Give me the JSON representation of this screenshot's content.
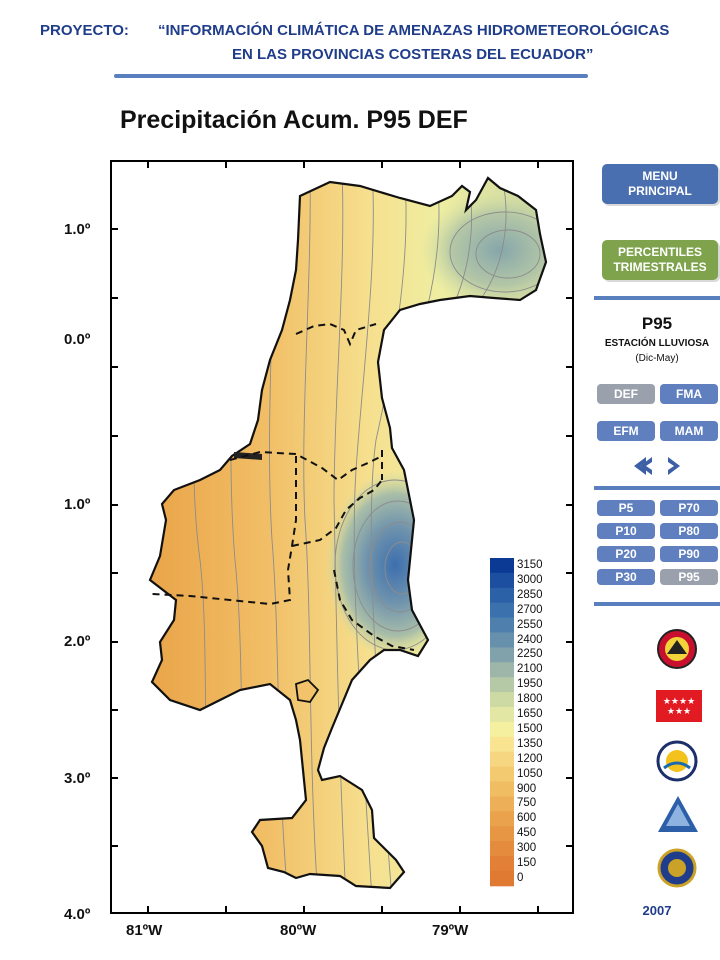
{
  "header": {
    "line1_prefix": "PROYECTO:",
    "line1_title": "“INFORMACIÓN CLIMÁTICA DE AMENAZAS HIDROMETEOROLÓGICAS",
    "line2_title": "EN LAS PROVINCIAS COSTERAS DEL ECUADOR”"
  },
  "map": {
    "title": "Precipitación Acum. P95 DEF",
    "lat_labels": [
      "1.0º",
      "0.0º",
      "1.0º",
      "2.0º",
      "3.0º",
      "4.0º"
    ],
    "lon_labels": [
      "81ºW",
      "80ºW",
      "79ºW"
    ]
  },
  "legend": {
    "values": [
      "3150",
      "3000",
      "2850",
      "2700",
      "2550",
      "2400",
      "2250",
      "2100",
      "1950",
      "1800",
      "1650",
      "1500",
      "1350",
      "1200",
      "1050",
      "900",
      "750",
      "600",
      "450",
      "300",
      "150",
      "0"
    ],
    "colors": [
      "#0b3a95",
      "#1c4f9f",
      "#2b61a7",
      "#3b72ad",
      "#4f80ad",
      "#6790ad",
      "#81a2ab",
      "#9db6a9",
      "#b6c9a6",
      "#cddaa3",
      "#e2e8a3",
      "#f4f0a0",
      "#f8e491",
      "#f6d680",
      "#f3ca70",
      "#f0bd63",
      "#edb058",
      "#eaa24d",
      "#e79644",
      "#e48b3d",
      "#e28038",
      "#e07a33"
    ]
  },
  "sidebar": {
    "menu_label_1": "MENU",
    "menu_label_2": "PRINCIPAL",
    "percentiles_1": "PERCENTILES",
    "percentiles_2": "TRIMESTRALES",
    "section_title": "P95",
    "section_sub": "ESTACIÓN LLUVIOSA",
    "section_period": "(Dic-May)",
    "season_buttons": [
      "DEF",
      "FMA",
      "EFM",
      "MAM"
    ],
    "percentile_buttons": [
      "P5",
      "P70",
      "P10",
      "P80",
      "P20",
      "P90",
      "P30",
      "P95"
    ],
    "year": "2007"
  },
  "colors": {
    "header_blue": "#1f3d8a",
    "menu_blue": "#4a6fb0",
    "percentiles_green": "#7ea34c",
    "button_grey": "#9aa1ad",
    "button_blue": "#5f7fbf"
  }
}
